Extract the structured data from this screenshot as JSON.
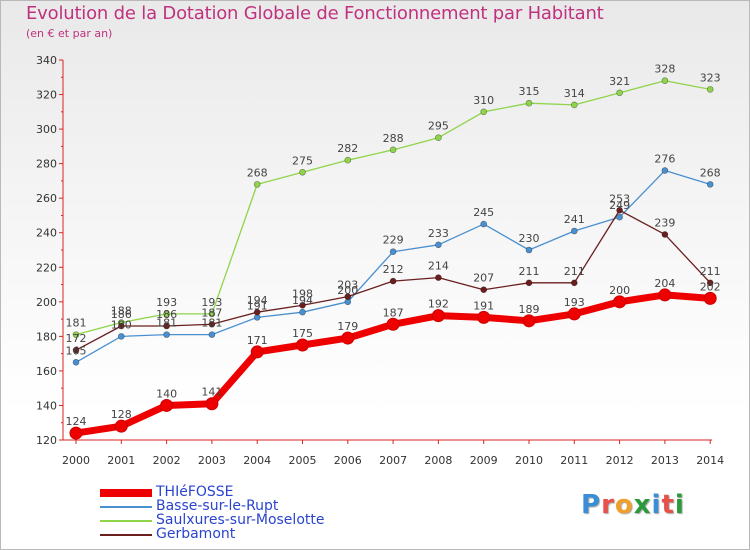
{
  "title": "Evolution de la Dotation Globale de Fonctionnement par Habitant",
  "subtitle": "(en € et par an)",
  "logo": {
    "text": "Proxiti",
    "colors": [
      "#3a8fd4",
      "#e8504a",
      "#f0a028",
      "#2a9a3a",
      "#3a8fd4",
      "#e8504a",
      "#2a9a3a"
    ]
  },
  "chart_data": {
    "type": "line",
    "title": "Evolution de la Dotation Globale de Fonctionnement par Habitant",
    "subtitle": "(en € et par an)",
    "xlabel": "",
    "ylabel": "",
    "x": [
      "2000",
      "2001",
      "2002",
      "2003",
      "2004",
      "2005",
      "2006",
      "2007",
      "2008",
      "2009",
      "2010",
      "2011",
      "2012",
      "2013",
      "2014"
    ],
    "ylim": [
      120,
      340
    ],
    "yticks": [
      120,
      140,
      160,
      180,
      200,
      220,
      240,
      260,
      280,
      300,
      320,
      340
    ],
    "grid": false,
    "legend_position": "bottom-left",
    "series": [
      {
        "name": "Saulxures-sur-Moselotte",
        "color": "#8fd44a",
        "values": [
          181,
          188,
          193,
          193,
          268,
          275,
          282,
          288,
          295,
          310,
          315,
          314,
          321,
          328,
          323
        ],
        "labels": [
          "181",
          "188",
          "193",
          "193",
          "268",
          "275",
          "282",
          "288",
          "295",
          "310",
          "315",
          "314",
          "321",
          "328",
          "323"
        ]
      },
      {
        "name": "Basse-sur-le-Rupt",
        "color": "#4a90d0",
        "values": [
          165,
          180,
          181,
          181,
          191,
          194,
          200,
          229,
          233,
          245,
          230,
          241,
          249,
          276,
          268
        ],
        "labels": [
          "165",
          "180",
          "181",
          "181",
          "191",
          "194",
          "200",
          "229",
          "233",
          "245",
          "230",
          "241",
          "249",
          "276",
          "268"
        ]
      },
      {
        "name": "Gerbamont",
        "color": "#6b1e1e",
        "values": [
          172,
          186,
          186,
          187,
          194,
          198,
          203,
          212,
          214,
          207,
          211,
          211,
          253,
          239,
          211
        ],
        "labels": [
          "172",
          "186",
          "186",
          "187",
          "194",
          "198",
          "203",
          "212",
          "214",
          "207",
          "211",
          "211",
          "253",
          "239",
          "211"
        ]
      },
      {
        "name": "THIéFOSSE",
        "color": "#ee0000",
        "values": [
          124,
          128,
          140,
          141,
          171,
          175,
          179,
          187,
          192,
          191,
          189,
          193,
          200,
          204,
          202
        ],
        "labels": [
          "124",
          "128",
          "140",
          "141",
          "171",
          "175",
          "179",
          "187",
          "192",
          "191",
          "189",
          "193",
          "200",
          "204",
          "202"
        ]
      }
    ],
    "legend": [
      "THIéFOSSE",
      "Basse-sur-le-Rupt",
      "Saulxures-sur-Moselotte",
      "Gerbamont"
    ]
  }
}
